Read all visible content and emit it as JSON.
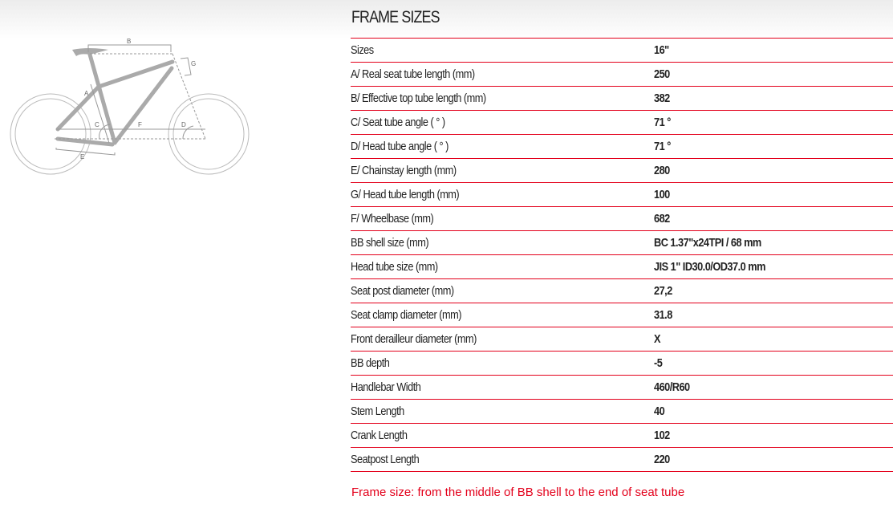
{
  "title": "FRAME SIZES",
  "rows": [
    {
      "label": "Sizes",
      "value": "16\""
    },
    {
      "label": "A/ Real seat tube length (mm)",
      "value": "250"
    },
    {
      "label": "B/ Effective top tube length (mm)",
      "value": "382"
    },
    {
      "label": "C/ Seat tube angle ( ° )",
      "value": "71 °"
    },
    {
      "label": "D/ Head tube angle ( ° )",
      "value": "71 °"
    },
    {
      "label": "E/ Chainstay length (mm)",
      "value": "280"
    },
    {
      "label": "G/ Head tube length (mm)",
      "value": "100"
    },
    {
      "label": "F/ Wheelbase (mm)",
      "value": "682"
    },
    {
      "label": "BB shell size (mm)",
      "value": "BC 1.37\"x24TPI / 68 mm"
    },
    {
      "label": "Head tube size (mm)",
      "value": "JIS 1\" ID30.0/OD37.0 mm"
    },
    {
      "label": "Seat post diameter (mm)",
      "value": "27,2"
    },
    {
      "label": "Seat clamp diameter (mm)",
      "value": "31.8"
    },
    {
      "label": "Front derailleur diameter (mm)",
      "value": "X"
    },
    {
      "label": "BB depth",
      "value": "-5"
    },
    {
      "label": "Handlebar Width",
      "value": "460/R60"
    },
    {
      "label": "Stem Length",
      "value": "40"
    },
    {
      "label": "Crank Length",
      "value": "102"
    },
    {
      "label": "Seatpost Length",
      "value": "220"
    }
  ],
  "note": "Frame size: from the middle of BB shell to the end of seat tube",
  "diagram_labels": {
    "a": "A",
    "b": "B",
    "c": "C",
    "d": "D",
    "e": "E",
    "f": "F",
    "g": "G"
  },
  "colors": {
    "accent": "#e3001b"
  }
}
